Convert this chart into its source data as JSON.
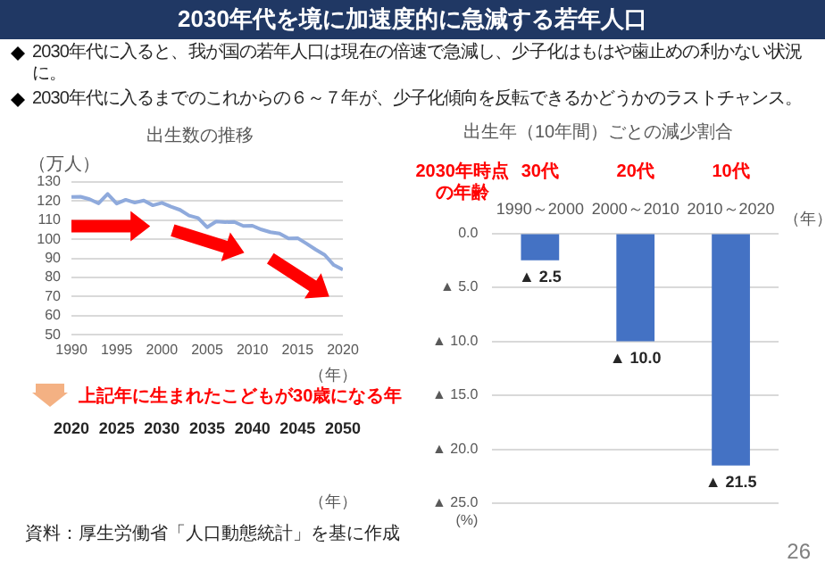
{
  "chart_data": [
    {
      "type": "other",
      "title": "2030年代を境に加速度的に急減する若年人口",
      "annotations": [
        "2030年代に入ると、我が国の若年人口は現在の倍速で急減し、少子化はもはや歯止めの利かない状況に。",
        "2030年代に入るまでのこれからの６～７年が、少子化傾向を反転できるかどうかのラストチャンス。"
      ]
    },
    {
      "type": "line",
      "title": "出生数の推移",
      "ylabel": "（万人）",
      "xlabel": "（年）",
      "x2label": "（年）",
      "x": [
        1990,
        1991,
        1992,
        1993,
        1994,
        1995,
        1996,
        1997,
        1998,
        1999,
        2000,
        2001,
        2002,
        2003,
        2004,
        2005,
        2006,
        2007,
        2008,
        2009,
        2010,
        2011,
        2012,
        2013,
        2014,
        2015,
        2016,
        2017,
        2018,
        2019,
        2020
      ],
      "values": [
        122.2,
        122.3,
        121.0,
        118.8,
        123.8,
        118.7,
        120.7,
        119.2,
        120.3,
        117.8,
        119.1,
        117.1,
        115.4,
        112.4,
        111.1,
        106.3,
        109.3,
        109.0,
        109.1,
        107.0,
        107.1,
        105.1,
        103.7,
        103.0,
        100.4,
        100.6,
        97.7,
        94.6,
        91.8,
        86.5,
        84.1
      ],
      "color": "#8faadc",
      "xlim": [
        1990,
        2020
      ],
      "xticks": [
        1990,
        1995,
        2000,
        2005,
        2010,
        2015,
        2020
      ],
      "x2lim": [
        2020,
        2050
      ],
      "x2ticks": [
        2020,
        2025,
        2030,
        2035,
        2040,
        2045,
        2050
      ],
      "ylim": [
        50,
        130
      ],
      "yticks": [
        50,
        60,
        70,
        80,
        90,
        100,
        110,
        120,
        130
      ],
      "grid": "y",
      "annotations": [
        "上記年に生まれたこどもが30歳になる年",
        "資料：厚生労働省「人口動態統計」を基に作成"
      ]
    },
    {
      "type": "bar",
      "title": "出生年（10年間）ごとの減少割合",
      "categories": [
        "1990～2000",
        "2000～2010",
        "2010～2020"
      ],
      "values": [
        2.5,
        10,
        21.5
      ],
      "value_labels": [
        "▲ 2.5",
        "▲ 10.0",
        "▲ 21.5"
      ],
      "color": "#4472c4",
      "xlabel": "（年）",
      "ylabel": "(%)",
      "ylim": [
        25,
        0
      ],
      "yticks": [
        {
          "value": 25,
          "label": "▲ 25.0"
        },
        {
          "value": 20,
          "label": "▲ 20.0"
        },
        {
          "value": 15,
          "label": "▲ 15.0"
        },
        {
          "value": 10,
          "label": "▲ 10.0"
        },
        {
          "value": 5,
          "label": "▲ 5.0"
        },
        {
          "value": 0,
          "label": "0.0"
        }
      ],
      "grid": "y",
      "annotations": [
        "2030年時点の年齢",
        "30代",
        "20代",
        "10代",
        "26"
      ]
    }
  ]
}
